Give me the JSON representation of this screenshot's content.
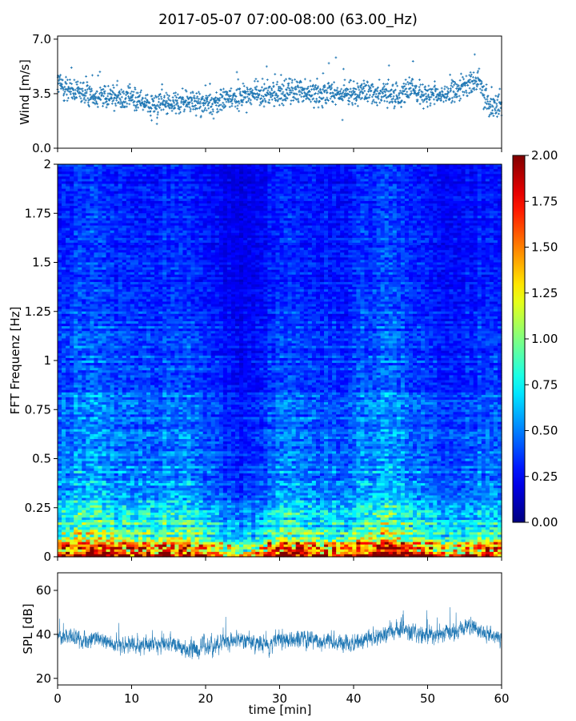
{
  "title": "2017-05-07 07:00-08:00 (63.00_Hz)",
  "chart_data": [
    {
      "type": "scatter",
      "panel": "wind",
      "ylabel": "Wind [m/s]",
      "ylim": [
        0,
        7.2
      ],
      "yticks": [
        0.0,
        3.5,
        7.0
      ],
      "ytick_labels": [
        "0.0",
        "3.5",
        "7.0"
      ],
      "xlim": [
        0,
        60
      ],
      "marker": "+",
      "color": "#1f77b4",
      "trend": {
        "x": [
          0,
          2,
          5,
          10,
          12,
          15,
          18,
          20,
          22,
          25,
          30,
          33,
          35,
          40,
          43,
          45,
          48,
          50,
          52,
          55,
          57,
          58,
          60
        ],
        "y": [
          4.2,
          3.6,
          3.4,
          3.2,
          2.8,
          2.9,
          3.0,
          2.8,
          3.0,
          3.4,
          3.5,
          3.8,
          3.5,
          3.5,
          3.6,
          3.3,
          3.8,
          3.3,
          3.4,
          3.9,
          4.4,
          3.0,
          2.6
        ]
      }
    },
    {
      "type": "heatmap",
      "panel": "spectrogram",
      "ylabel": "FFT Frequenz [Hz]",
      "ylim": [
        0,
        2
      ],
      "yticks": [
        0,
        0.25,
        0.5,
        0.75,
        1,
        1.25,
        1.5,
        1.75,
        2
      ],
      "ytick_labels": [
        "0",
        "0.25",
        "0.5",
        "0.75",
        "1",
        "1.25",
        "1.5",
        "1.75",
        "2"
      ],
      "xlim": [
        0,
        60
      ],
      "colormap": "jet",
      "clim": [
        0,
        2
      ],
      "colorbar_ticks": [
        0,
        0.25,
        0.5,
        0.75,
        1.0,
        1.25,
        1.5,
        1.75,
        2.0
      ],
      "colorbar_labels": [
        "0.00",
        "0.25",
        "0.50",
        "0.75",
        "1.00",
        "1.25",
        "1.50",
        "1.75",
        "2.00"
      ],
      "mean_profile": {
        "freq": [
          0,
          0.03,
          0.06,
          0.1,
          0.15,
          0.2,
          0.3,
          0.5,
          0.75,
          1.0,
          1.5,
          2.0
        ],
        "value": [
          1.85,
          1.5,
          1.2,
          1.0,
          0.85,
          0.72,
          0.6,
          0.5,
          0.45,
          0.4,
          0.33,
          0.3
        ]
      }
    },
    {
      "type": "area",
      "panel": "spl",
      "ylabel": "SPL [dB]",
      "xlabel": "time [min]",
      "ylim": [
        17,
        68
      ],
      "yticks": [
        20,
        40,
        60
      ],
      "ytick_labels": [
        "20",
        "40",
        "60"
      ],
      "xlim": [
        0,
        60
      ],
      "xticks": [
        0,
        10,
        20,
        30,
        40,
        50,
        60
      ],
      "xtick_labels": [
        "0",
        "10",
        "20",
        "30",
        "40",
        "50",
        "60"
      ],
      "color": "#1f77b4",
      "trend": {
        "x": [
          0,
          3,
          8,
          12,
          15,
          18,
          21,
          25,
          28,
          32,
          35,
          40,
          44,
          47,
          50,
          53,
          56,
          58,
          60
        ],
        "y": [
          39,
          38,
          36,
          35,
          36,
          33,
          35,
          38,
          35,
          38,
          37,
          36,
          40,
          42,
          39,
          41,
          43,
          40,
          39
        ]
      }
    }
  ]
}
